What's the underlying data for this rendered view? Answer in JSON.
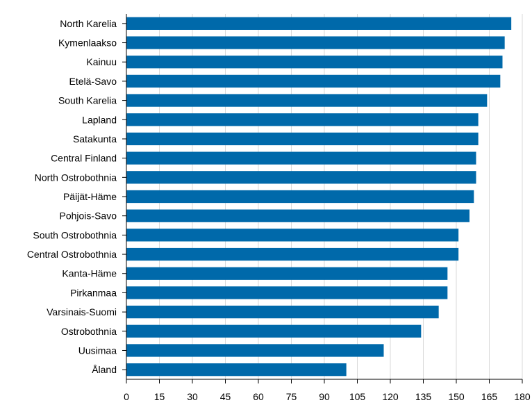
{
  "chart_data": {
    "type": "bar",
    "orientation": "horizontal",
    "categories": [
      "North Karelia",
      "Kymenlaakso",
      "Kainuu",
      "Etelä-Savo",
      "South Karelia",
      "Lapland",
      "Satakunta",
      "Central Finland",
      "North Ostrobothnia",
      "Päijät-Häme",
      "Pohjois-Savo",
      "South Ostrobothnia",
      "Central Ostrobothnia",
      "Kanta-Häme",
      "Pirkanmaa",
      "Varsinais-Suomi",
      "Ostrobothnia",
      "Uusimaa",
      "Åland"
    ],
    "values": [
      175,
      172,
      171,
      170,
      164,
      160,
      160,
      159,
      159,
      158,
      156,
      151,
      151,
      146,
      146,
      142,
      134,
      117,
      100
    ],
    "title": "",
    "xlabel": "",
    "ylabel": "",
    "xlim": [
      0,
      180
    ],
    "ticks": [
      0,
      15,
      30,
      45,
      60,
      75,
      90,
      105,
      120,
      135,
      150,
      165,
      180
    ],
    "grid": "vertical",
    "legend": "none",
    "bar_color": "#0069aa",
    "grid_color": "#d9d9d9",
    "axis_color": "#000000"
  }
}
